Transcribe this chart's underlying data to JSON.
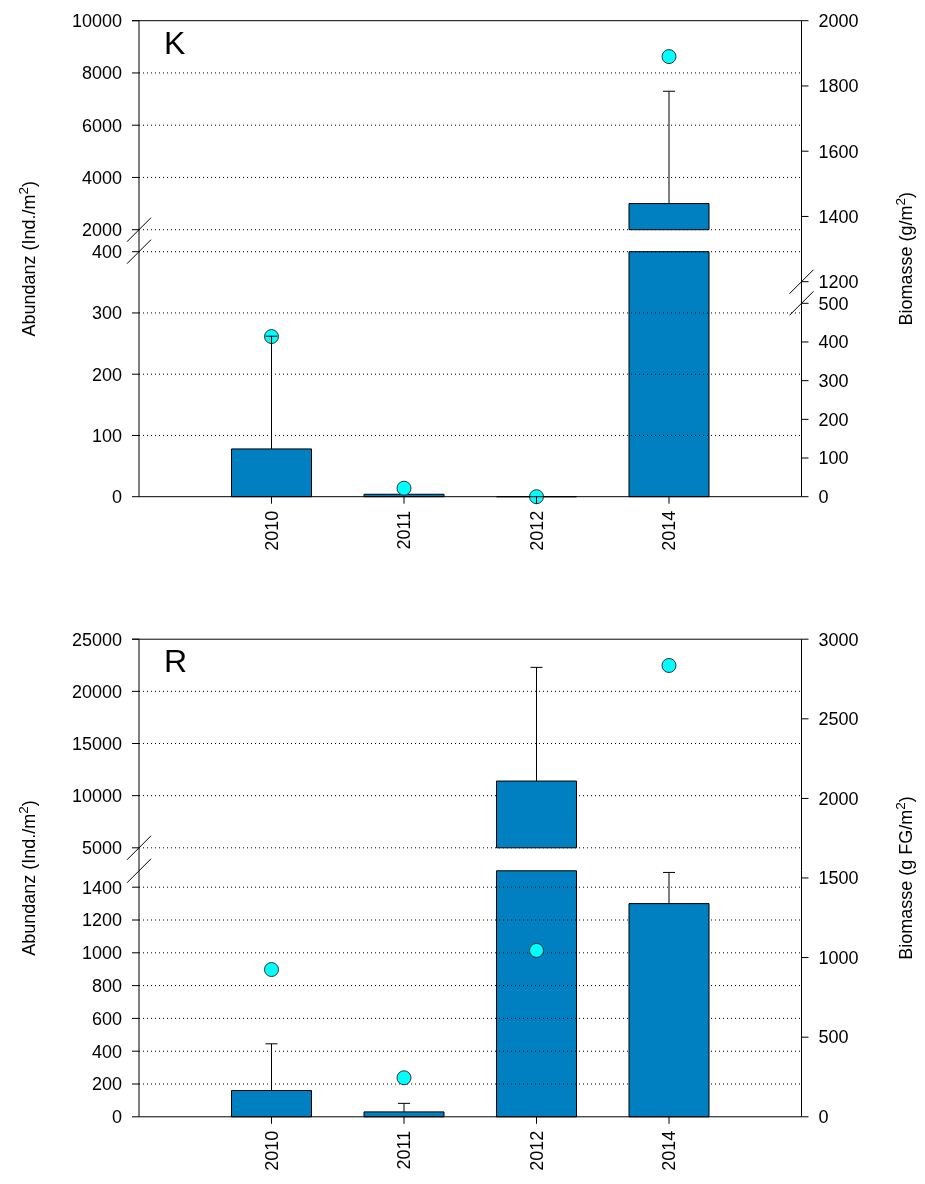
{
  "chart_data": [
    {
      "type": "bar",
      "title": "K",
      "categories": [
        "2010",
        "2011",
        "2012",
        "2014"
      ],
      "tick_labels": "y",
      "series": [
        {
          "color": "#0080c0",
          "values": [
            null,
            null,
            null,
            3000
          ],
          "errors": [
            null,
            null,
            null,
            [
              3000,
              7300
            ]
          ]
        },
        {
          "type": "scatter",
          "axis": "y2",
          "color": "#00ffff",
          "values": [
            null,
            null,
            null,
            1890
          ]
        }
      ],
      "ylim": [
        2000,
        10000
      ],
      "yticks": [
        2000,
        4000,
        6000,
        8000,
        10000
      ],
      "y2lim": [
        1200,
        2000
      ],
      "y2ticks": [
        1200,
        1400,
        1600,
        1800,
        2000
      ],
      "grid": "y",
      "marker": "circle"
    },
    {
      "type": "bar",
      "categories": [
        "2010",
        "2011",
        "2012",
        "2014"
      ],
      "series": [
        {
          "color": "#0080c0",
          "values": [
            78,
            4,
            0,
            null
          ],
          "errors": [
            [
              78,
              262
            ],
            null,
            null,
            null
          ]
        },
        {
          "type": "scatter",
          "axis": "y2",
          "color": "#00ffff",
          "values": [
            414,
            22,
            0,
            null
          ]
        }
      ],
      "ylabel": "Abundanz (Ind./m$^{2}$)",
      "y2label": "Biomasse (g/m$^{2}$)",
      "ylim": [
        0,
        400
      ],
      "yticks": [
        0,
        100,
        200,
        300,
        400
      ],
      "y2lim": [
        0,
        500
      ],
      "y2ticks": [
        0,
        100,
        200,
        300,
        400,
        500
      ],
      "grid": "y",
      "marker": "circle"
    },
    {
      "type": "bar",
      "title": "R",
      "categories": [
        "2010",
        "2011",
        "2012",
        "2014"
      ],
      "tick_labels": "y",
      "series": [
        {
          "color": "#0080c0",
          "values": [
            null,
            null,
            11400,
            null
          ],
          "errors": [
            null,
            null,
            [
              11400,
              22300
            ],
            null
          ]
        },
        {
          "type": "scatter",
          "axis": "y2",
          "color": "#00ffff",
          "values": [
            null,
            null,
            null,
            2835
          ]
        }
      ],
      "ylim": [
        5000,
        25000
      ],
      "yticks": [
        5000,
        10000,
        15000,
        20000,
        25000
      ],
      "y2lim": [
        1690,
        3000
      ],
      "y2ticks": [
        2000,
        2500,
        3000
      ],
      "marker": "circle",
      "grid": "y"
    },
    {
      "type": "bar",
      "categories": [
        "2010",
        "2011",
        "2012",
        "2014"
      ],
      "series": [
        {
          "color": "#0080c0",
          "values": [
            160,
            30,
            null,
            1300
          ],
          "errors": [
            [
              160,
              445
            ],
            [
              30,
              82
            ],
            null,
            [
              1300,
              1490
            ]
          ]
        },
        {
          "type": "scatter",
          "axis": "y2",
          "color": "#00ffff",
          "values": [
            925,
            245,
            1045,
            null
          ]
        }
      ],
      "ylabel": "Abundanz (Ind./m$^{2}$)",
      "y2label": "Biomasse (g FG/m$^{2}$)",
      "ylim": [
        0,
        1500
      ],
      "yticks": [
        0,
        200,
        400,
        600,
        800,
        1000,
        1200,
        1400
      ],
      "y2lim": [
        0,
        1545
      ],
      "y2ticks": [
        0,
        500,
        1000,
        1500
      ],
      "grid": "y",
      "marker": "circle"
    }
  ]
}
